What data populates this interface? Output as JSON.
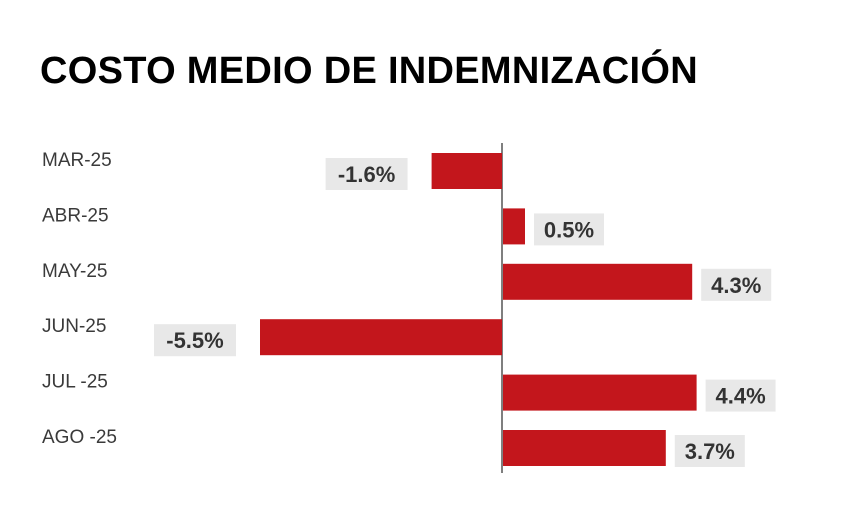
{
  "chart_data": {
    "type": "bar",
    "orientation": "horizontal",
    "title": "COSTO MEDIO DE INDEMNIZACIÓN",
    "xlabel": "",
    "ylabel": "",
    "categories": [
      "MAR-25",
      "ABR-25",
      "MAY-25",
      "JUN-25",
      "JUL -25",
      "AGO -25"
    ],
    "values": [
      -1.6,
      0.5,
      4.3,
      -5.5,
      4.4,
      3.7
    ],
    "value_labels": [
      "-1.6%",
      "0.5%",
      "4.3%",
      "-5.5%",
      "4.4%",
      "3.7%"
    ],
    "grid": false,
    "legend": "none",
    "colors": {
      "bar": "#c3161c",
      "label_bg": "#e8e8e8",
      "axis": "#555555"
    }
  }
}
